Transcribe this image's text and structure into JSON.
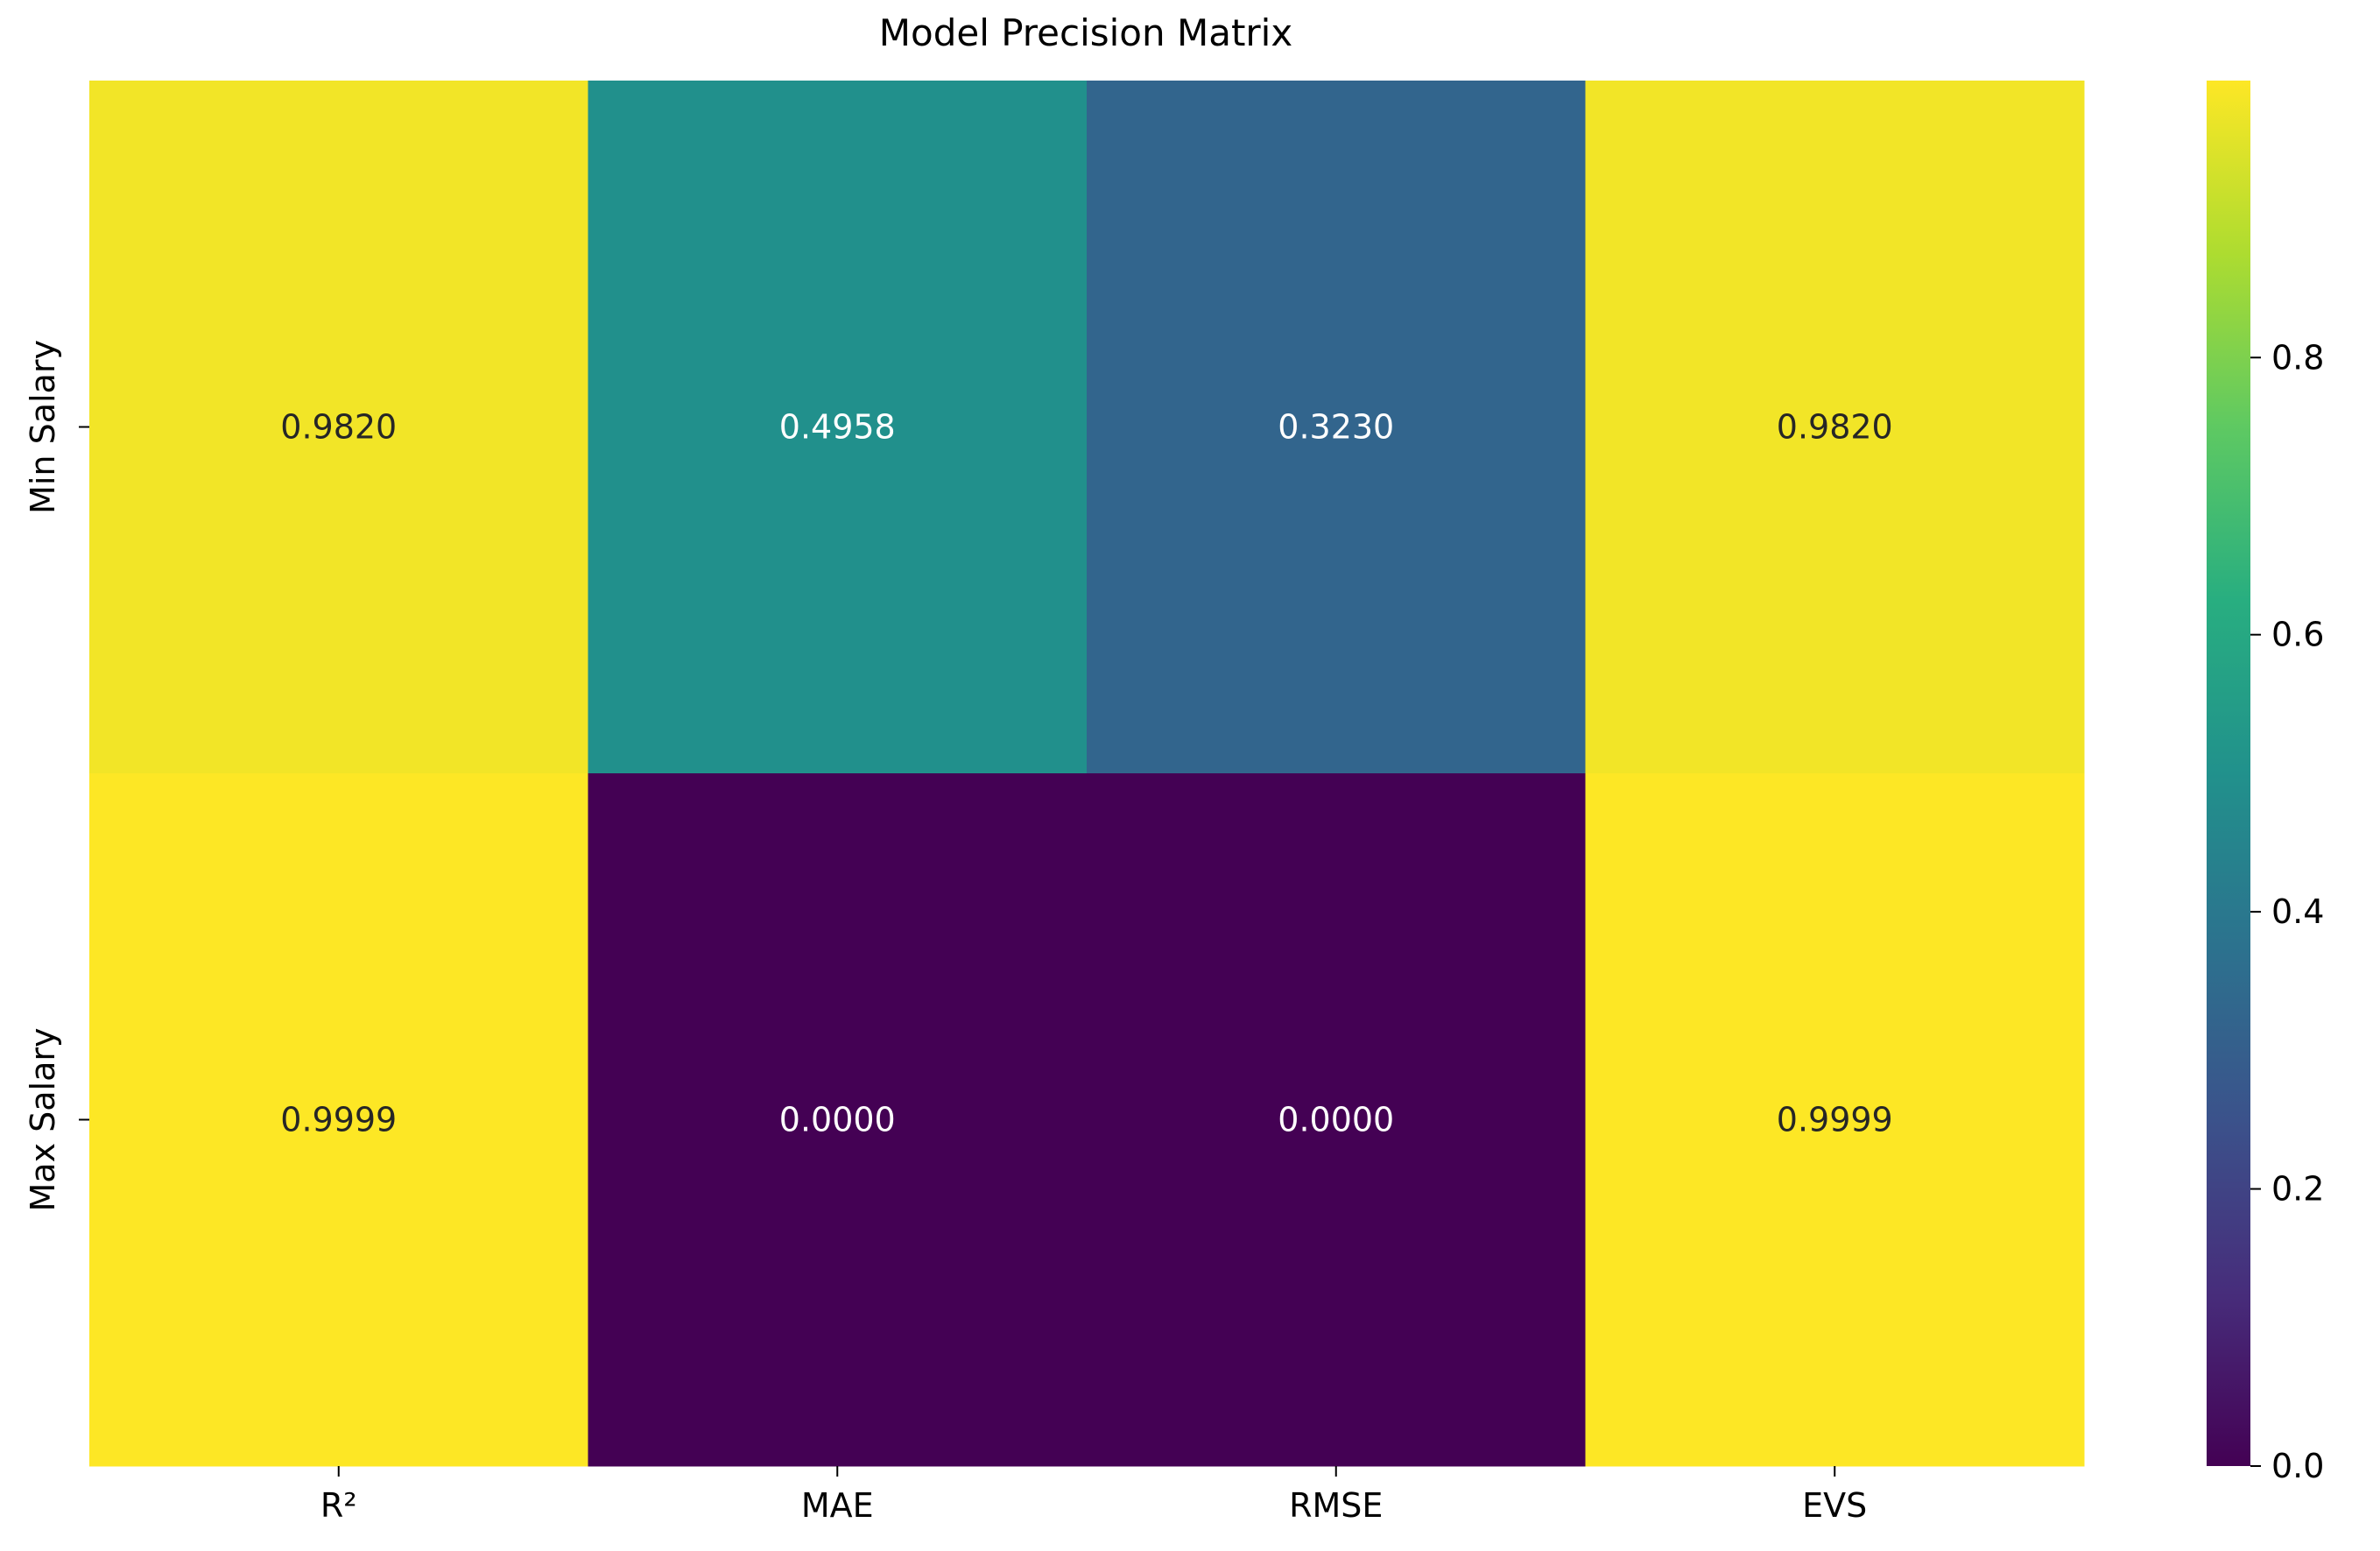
{
  "chart_data": {
    "type": "heatmap",
    "title": "Model Precision Matrix",
    "xlabel": "",
    "ylabel": "",
    "columns": [
      "R²",
      "MAE",
      "RMSE",
      "EVS"
    ],
    "rows": [
      "Min Salary",
      "Max Salary"
    ],
    "values": [
      [
        0.982,
        0.4958,
        0.323,
        0.982
      ],
      [
        0.9999,
        0.0,
        0.0,
        0.9999
      ]
    ],
    "value_labels": [
      [
        "0.9820",
        "0.4958",
        "0.3230",
        "0.9820"
      ],
      [
        "0.9999",
        "0.0000",
        "0.0000",
        "0.9999"
      ]
    ],
    "colormap": "viridis",
    "vmin": 0.0,
    "vmax": 0.9999,
    "colorbar": {
      "ticks": [
        0.0,
        0.2,
        0.4,
        0.6,
        0.8
      ],
      "tick_labels": [
        "0.0",
        "0.2",
        "0.4",
        "0.6",
        "0.8"
      ],
      "placement": "right"
    },
    "grid": false,
    "legend": "none"
  }
}
